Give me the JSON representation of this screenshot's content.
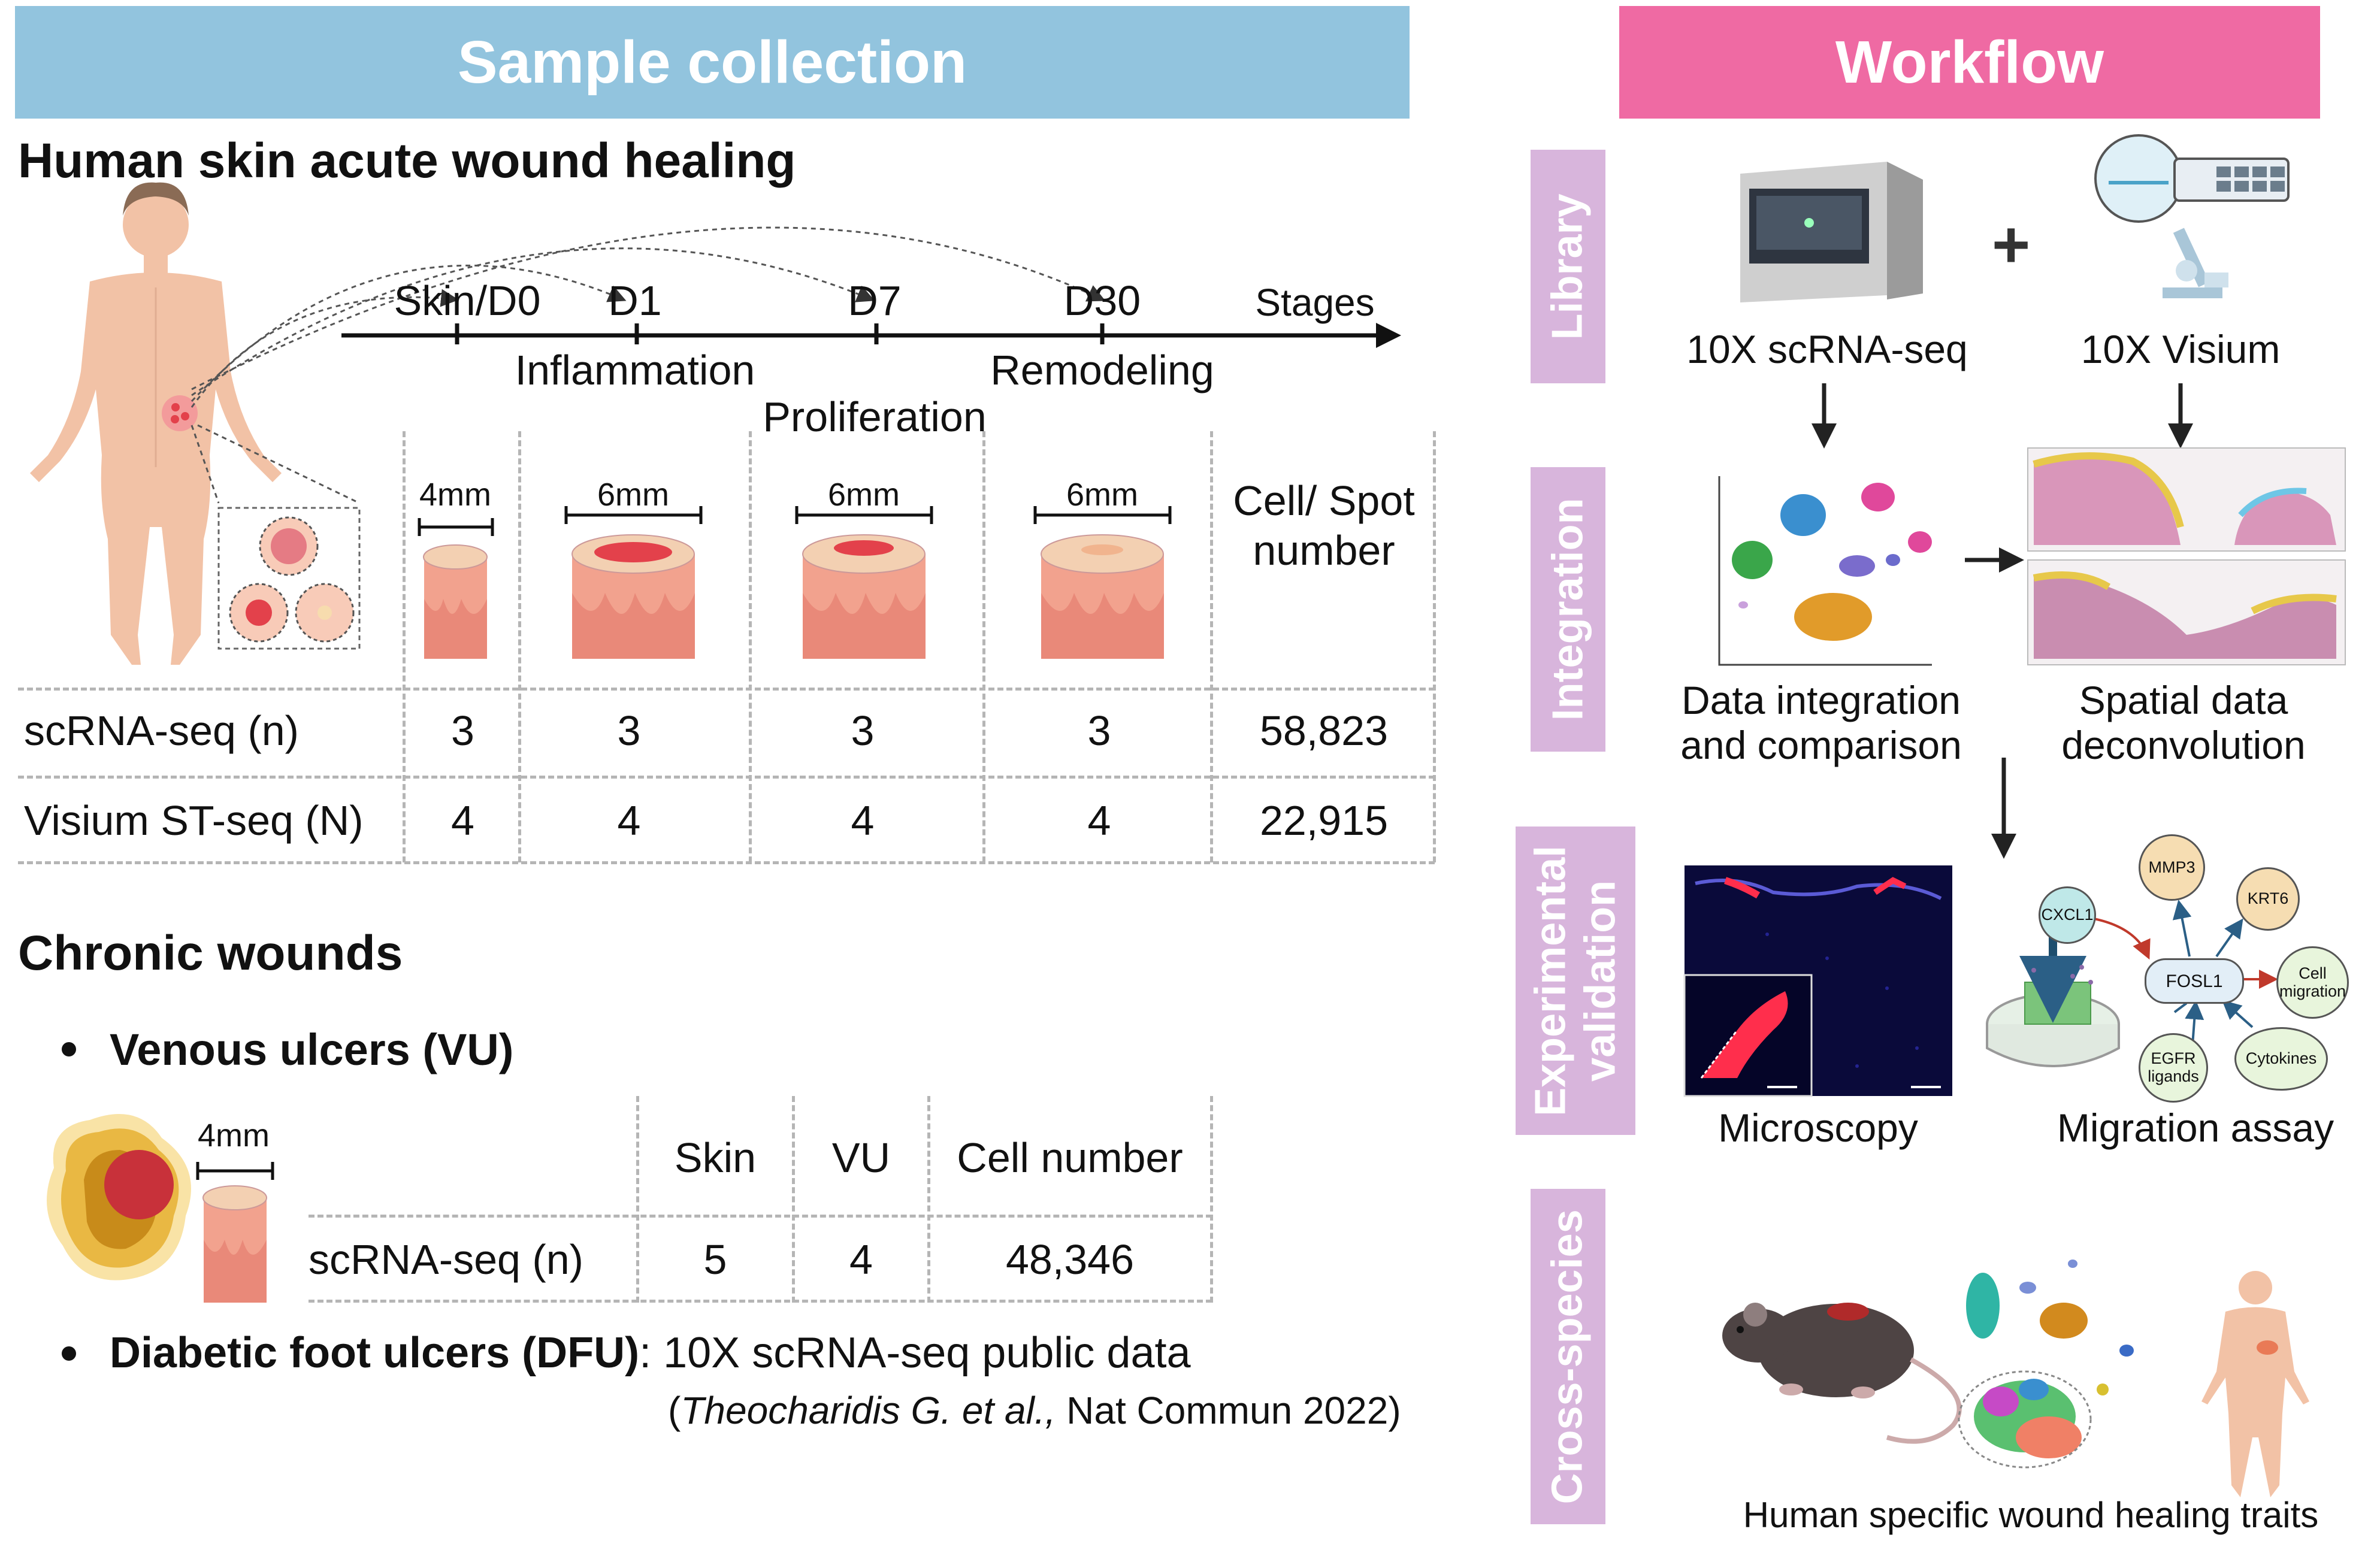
{
  "colors": {
    "sample_banner": "#92c4de",
    "workflow_banner": "#ef6aa3",
    "side_label": "#d8b5dc",
    "wound_red": "#e3414b",
    "skin_tone": "#f2c2a6"
  },
  "left": {
    "banner": "Sample collection",
    "acute_title": "Human skin acute wound healing",
    "timeline": {
      "points": [
        "Skin/D0",
        "D1",
        "D7",
        "D30"
      ],
      "axis_label": "Stages",
      "phases": [
        "Inflammation",
        "Remodeling",
        "Proliferation"
      ]
    },
    "biopsy_sizes": [
      "4mm",
      "6mm",
      "6mm",
      "6mm"
    ],
    "count_header": "Cell/ Spot number",
    "rows": [
      {
        "label": "scRNA-seq (n)",
        "values": [
          "3",
          "3",
          "3",
          "3"
        ],
        "total": "58,823"
      },
      {
        "label": "Visium ST-seq (N)",
        "values": [
          "4",
          "4",
          "4",
          "4"
        ],
        "total": "22,915"
      }
    ],
    "chronic_title": "Chronic wounds",
    "vu_bullet": "Venous ulcers (VU)",
    "vu_size": "4mm",
    "vu_table": {
      "headers": [
        "Skin",
        "VU",
        "Cell number"
      ],
      "row_label": "scRNA-seq (n)",
      "values": [
        "5",
        "4",
        "48,346"
      ]
    },
    "dfu_bold": "Diabetic foot ulcers (DFU)",
    "dfu_rest": ": 10X scRNA-seq public data",
    "citation_open": "(",
    "citation_italic": "Theocharidis G. et al.,",
    "citation_rest": " Nat Commun 2022)"
  },
  "right": {
    "banner": "Workflow",
    "sections": [
      "Library",
      "Integration",
      "Experimental validation",
      "Cross-species"
    ],
    "library": {
      "left": "10X scRNA-seq",
      "right": "10X Visium",
      "plus": "+"
    },
    "integration": {
      "left": "Data integration and comparison",
      "right": "Spatial data deconvolution"
    },
    "validation": {
      "left": "Microscopy",
      "right": "Migration assay",
      "genes": {
        "cxcl1": "CXCL1",
        "mmp3": "MMP3",
        "krt6": "KRT6",
        "fosl1": "FOSL1",
        "cell_migration": "Cell migration",
        "egfr": "EGFR ligands",
        "cytokines": "Cytokines"
      }
    },
    "cross_species": {
      "caption": "Human specific wound healing traits"
    }
  }
}
